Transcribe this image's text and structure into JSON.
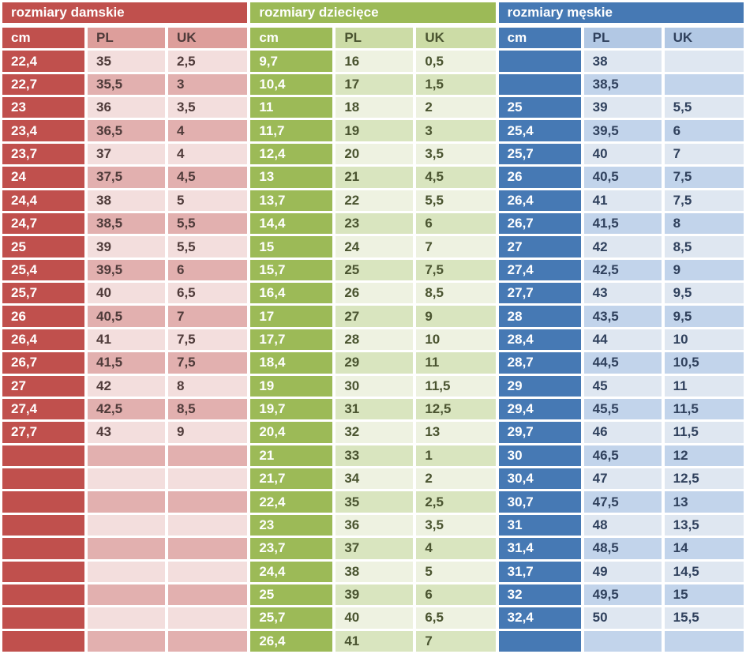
{
  "page": {
    "background": "#ffffff",
    "gap_color": "#ffffff"
  },
  "chart_data": [
    {
      "type": "table",
      "title": "rozmiary damskie",
      "columns": [
        "cm",
        "PL",
        "UK"
      ],
      "colors": {
        "solid": "#c0504d",
        "header": "#dd9e9b",
        "row_light": "#f3dedd",
        "row_dark": "#e2b0af",
        "text": "#4f3b3a",
        "title_text": "#ffffff"
      },
      "rows": [
        [
          "22,4",
          "35",
          "2,5"
        ],
        [
          "22,7",
          "35,5",
          "3"
        ],
        [
          "23",
          "36",
          "3,5"
        ],
        [
          "23,4",
          "36,5",
          "4"
        ],
        [
          "23,7",
          "37",
          "4"
        ],
        [
          "24",
          "37,5",
          "4,5"
        ],
        [
          "24,4",
          "38",
          "5"
        ],
        [
          "24,7",
          "38,5",
          "5,5"
        ],
        [
          "25",
          "39",
          "5,5"
        ],
        [
          "25,4",
          "39,5",
          "6"
        ],
        [
          "25,7",
          "40",
          "6,5"
        ],
        [
          "26",
          "40,5",
          "7"
        ],
        [
          "26,4",
          "41",
          "7,5"
        ],
        [
          "26,7",
          "41,5",
          "7,5"
        ],
        [
          "27",
          "42",
          "8"
        ],
        [
          "27,4",
          "42,5",
          "8,5"
        ],
        [
          "27,7",
          "43",
          "9"
        ],
        [
          "",
          "",
          ""
        ],
        [
          "",
          "",
          ""
        ],
        [
          "",
          "",
          ""
        ],
        [
          "",
          "",
          ""
        ],
        [
          "",
          "",
          ""
        ],
        [
          "",
          "",
          ""
        ],
        [
          "",
          "",
          ""
        ],
        [
          "",
          "",
          ""
        ],
        [
          "",
          "",
          ""
        ]
      ]
    },
    {
      "type": "table",
      "title": "rozmiary dziecięce",
      "columns": [
        "cm",
        "PL",
        "UK"
      ],
      "colors": {
        "solid": "#9cba57",
        "header": "#ccdca6",
        "row_light": "#eef2e1",
        "row_dark": "#d9e5bf",
        "text": "#4a5430",
        "title_text": "#ffffff"
      },
      "rows": [
        [
          "9,7",
          "16",
          "0,5"
        ],
        [
          "10,4",
          "17",
          "1,5"
        ],
        [
          "11",
          "18",
          "2"
        ],
        [
          "11,7",
          "19",
          "3"
        ],
        [
          "12,4",
          "20",
          "3,5"
        ],
        [
          "13",
          "21",
          "4,5"
        ],
        [
          "13,7",
          "22",
          "5,5"
        ],
        [
          "14,4",
          "23",
          "6"
        ],
        [
          "15",
          "24",
          "7"
        ],
        [
          "15,7",
          "25",
          "7,5"
        ],
        [
          "16,4",
          "26",
          "8,5"
        ],
        [
          "17",
          "27",
          "9"
        ],
        [
          "17,7",
          "28",
          "10"
        ],
        [
          "18,4",
          "29",
          "11"
        ],
        [
          "19",
          "30",
          "11,5"
        ],
        [
          "19,7",
          "31",
          "12,5"
        ],
        [
          "20,4",
          "32",
          "13"
        ],
        [
          "21",
          "33",
          "1"
        ],
        [
          "21,7",
          "34",
          "2"
        ],
        [
          "22,4",
          "35",
          "2,5"
        ],
        [
          "23",
          "36",
          "3,5"
        ],
        [
          "23,7",
          "37",
          "4"
        ],
        [
          "24,4",
          "38",
          "5"
        ],
        [
          "25",
          "39",
          "6"
        ],
        [
          "25,7",
          "40",
          "6,5"
        ],
        [
          "26,4",
          "41",
          "7"
        ]
      ]
    },
    {
      "type": "table",
      "title": "rozmiary męskie",
      "columns": [
        "cm",
        "PL",
        "UK"
      ],
      "colors": {
        "solid": "#4679b4",
        "header": "#b2c8e4",
        "row_light": "#dfe7f1",
        "row_dark": "#c2d4eb",
        "text": "#30415d",
        "title_text": "#ffffff"
      },
      "rows": [
        [
          "",
          "38",
          ""
        ],
        [
          "",
          "38,5",
          ""
        ],
        [
          "25",
          "39",
          "5,5"
        ],
        [
          "25,4",
          "39,5",
          "6"
        ],
        [
          "25,7",
          "40",
          "7"
        ],
        [
          "26",
          "40,5",
          "7,5"
        ],
        [
          "26,4",
          "41",
          "7,5"
        ],
        [
          "26,7",
          "41,5",
          "8"
        ],
        [
          "27",
          "42",
          "8,5"
        ],
        [
          "27,4",
          "42,5",
          "9"
        ],
        [
          "27,7",
          "43",
          "9,5"
        ],
        [
          "28",
          "43,5",
          "9,5"
        ],
        [
          "28,4",
          "44",
          "10"
        ],
        [
          "28,7",
          "44,5",
          "10,5"
        ],
        [
          "29",
          "45",
          "11"
        ],
        [
          "29,4",
          "45,5",
          "11,5"
        ],
        [
          "29,7",
          "46",
          "11,5"
        ],
        [
          "30",
          "46,5",
          "12"
        ],
        [
          "30,4",
          "47",
          "12,5"
        ],
        [
          "30,7",
          "47,5",
          "13"
        ],
        [
          "31",
          "48",
          "13,5"
        ],
        [
          "31,4",
          "48,5",
          "14"
        ],
        [
          "31,7",
          "49",
          "14,5"
        ],
        [
          "32",
          "49,5",
          "15"
        ],
        [
          "32,4",
          "50",
          "15,5"
        ],
        [
          "",
          "",
          ""
        ]
      ]
    }
  ]
}
